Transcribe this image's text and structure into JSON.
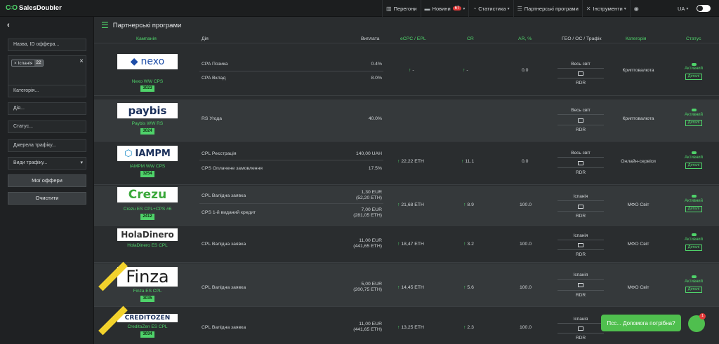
{
  "topbar": {
    "brand": "SalesDoubler",
    "nav": [
      {
        "label": "Перегони",
        "icon": "road-icon"
      },
      {
        "label": "Новини",
        "badge": "67",
        "icon": "news-icon"
      },
      {
        "label": "Статистика",
        "icon": "chart-icon"
      },
      {
        "label": "Партнерські програми",
        "icon": "list-icon"
      },
      {
        "label": "Інструменти",
        "icon": "tools-icon"
      }
    ],
    "lang": "UA"
  },
  "sidebar": {
    "search_placeholder": "Назва, ID оффера...",
    "geo_chip": "Іспанія",
    "geo_chip_count": "22",
    "category_placeholder": "Категорія...",
    "action_placeholder": "Дія...",
    "status_placeholder": "Статус...",
    "source_placeholder": "Джерела трафіку...",
    "traffic_type_placeholder": "Види трафіку...",
    "my_offers_label": "Мої оффери",
    "clear_label": "Очистити"
  },
  "page": {
    "title": "Партнерські програми"
  },
  "table": {
    "headers": [
      "Кампанія",
      "Дія",
      "Виплата",
      "eCPC / EPL",
      "CR",
      "AR, %",
      "ГЕО / ОС / Трафік",
      "Категорія",
      "Статус"
    ],
    "rows": [
      {
        "logo": "nexo",
        "name": "Nexo WW CPS",
        "id": "3023",
        "actions": [
          {
            "label": "CPA Позика",
            "payout": "0.4%"
          },
          {
            "label": "CPA Вклад",
            "payout": "8.0%"
          }
        ],
        "ecpc": "-",
        "cr": "-",
        "ar": "0.0",
        "geo": "Весь світ",
        "traffic": "RDR",
        "category": "Криптовалюта",
        "status": "Активний",
        "details": "Деталі"
      },
      {
        "logo": "paybis",
        "name": "Paybis WW RS",
        "id": "3024",
        "actions": [
          {
            "label": "RS Угода",
            "payout": "40.0%"
          }
        ],
        "ecpc": "",
        "cr": "",
        "ar": "",
        "geo": "Весь світ",
        "traffic": "RDR",
        "category": "Криптовалюта",
        "status": "Активний",
        "details": "Деталі"
      },
      {
        "logo": "IAMPM",
        "name": "IAMPM WW CPS",
        "id": "3254",
        "actions": [
          {
            "label": "CPL Реєстрація",
            "payout": "140,00 UAH"
          },
          {
            "label": "CPS Оплачене замовлення",
            "payout": "17.5%"
          }
        ],
        "ecpc": "22,22 ETH",
        "cr": "11.1",
        "ar": "0.0",
        "geo": "Весь світ",
        "traffic": "RDR",
        "category": "Онлайн-сервіси",
        "status": "Активний",
        "details": "Деталі"
      },
      {
        "logo": "Crezu",
        "name": "Crezu ES CPL+CPS #6",
        "id": "2412",
        "actions": [
          {
            "label": "CPL Валідна заявка",
            "payout": "1,30 EUR",
            "payout2": "(52,20 ETH)"
          },
          {
            "label": "CPS 1-й виданий кредит",
            "payout": "7,00 EUR",
            "payout2": "(281,05 ETH)"
          }
        ],
        "ecpc": "21,68 ETH",
        "cr": "8.9",
        "ar": "100.0",
        "geo": "Іспанія",
        "traffic": "RDR",
        "category": "МФО Світ",
        "status": "Активний",
        "details": "Деталі"
      },
      {
        "logo": "HolaDinero",
        "name": "HolaDinero ES CPL",
        "id": "",
        "actions": [
          {
            "label": "CPL Валідна заявка",
            "payout": "11,00 EUR",
            "payout2": "(441,65 ETH)"
          }
        ],
        "ecpc": "18,47 ETH",
        "cr": "3.2",
        "ar": "100.0",
        "geo": "Іспанія",
        "traffic": "RDR",
        "category": "МФО Світ",
        "status": "Активний",
        "details": "Деталі"
      },
      {
        "logo": "Finza",
        "name": "Finza ES CPL",
        "id": "3035",
        "actions": [
          {
            "label": "CPL Валідна заявка",
            "payout": "5,00 EUR",
            "payout2": "(200,75 ETH)"
          }
        ],
        "ecpc": "14,45 ETH",
        "cr": "5.6",
        "ar": "100.0",
        "geo": "Іспанія",
        "traffic": "RDR",
        "category": "МФО Світ",
        "status": "Активний",
        "details": "Деталі"
      },
      {
        "logo": "CREDITOZEN",
        "name": "CreditoZen ES CPL",
        "id": "3034",
        "actions": [
          {
            "label": "CPL Валідна заявка",
            "payout": "11,00 EUR",
            "payout2": "(441,65 ETH)"
          }
        ],
        "ecpc": "13,25 ETH",
        "cr": "2.3",
        "ar": "100.0",
        "geo": "Іспанія",
        "traffic": "RDR",
        "category": "",
        "status": "",
        "details": ""
      }
    ]
  },
  "help_chat": {
    "label": "Псс... Допомога потрібна?",
    "badge": "1"
  }
}
